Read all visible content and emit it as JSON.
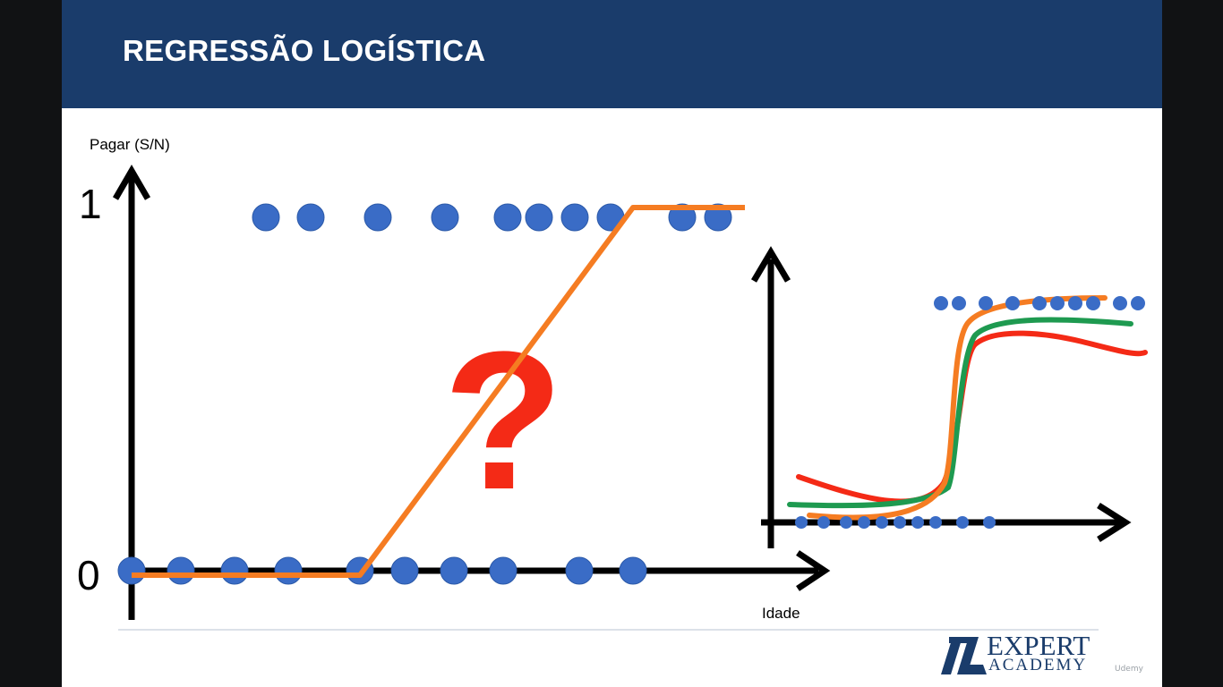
{
  "slide": {
    "title": "REGRESSÃO LOGÍSTICA",
    "header_color": "#1a3c6b"
  },
  "main_plot": {
    "y_axis_label": "Pagar (S/N)",
    "x_axis_label": "Idade",
    "y_tick_top": "1",
    "y_tick_bottom": "0",
    "question_mark": "?",
    "colors": {
      "points": "#3a6cc6",
      "fit_line": "#f57c22",
      "question": "#f42a16",
      "axes": "#000000"
    },
    "points_y1_x": [
      1.3,
      1.8,
      2.55,
      3.3,
      4.0,
      4.35,
      4.75,
      5.15,
      5.95,
      6.35
    ],
    "points_y0_x": [
      -0.2,
      0.35,
      0.95,
      1.55,
      2.35,
      2.85,
      3.4,
      3.95,
      4.8,
      5.4
    ],
    "linear_fit": [
      [
        -0.2,
        0
      ],
      [
        2.35,
        0
      ],
      [
        5.4,
        1
      ],
      [
        6.65,
        1
      ]
    ]
  },
  "inset_plot": {
    "colors": {
      "points": "#3a6cc6",
      "orange": "#f57c22",
      "green": "#1e9a50",
      "red": "#f42a16"
    },
    "points_top_x": [
      0.2,
      0.4,
      0.7,
      1.0,
      1.3,
      1.5,
      1.7,
      1.9,
      2.2,
      2.4
    ],
    "points_bottom_x": [
      0.2,
      0.45,
      0.7,
      0.9,
      1.1,
      1.3,
      1.5,
      1.7,
      2.0,
      2.3
    ]
  },
  "logo": {
    "line1": "EXPERT",
    "line2": "ACADEMY",
    "color": "#1a3c6b"
  },
  "watermark": "Udemy"
}
